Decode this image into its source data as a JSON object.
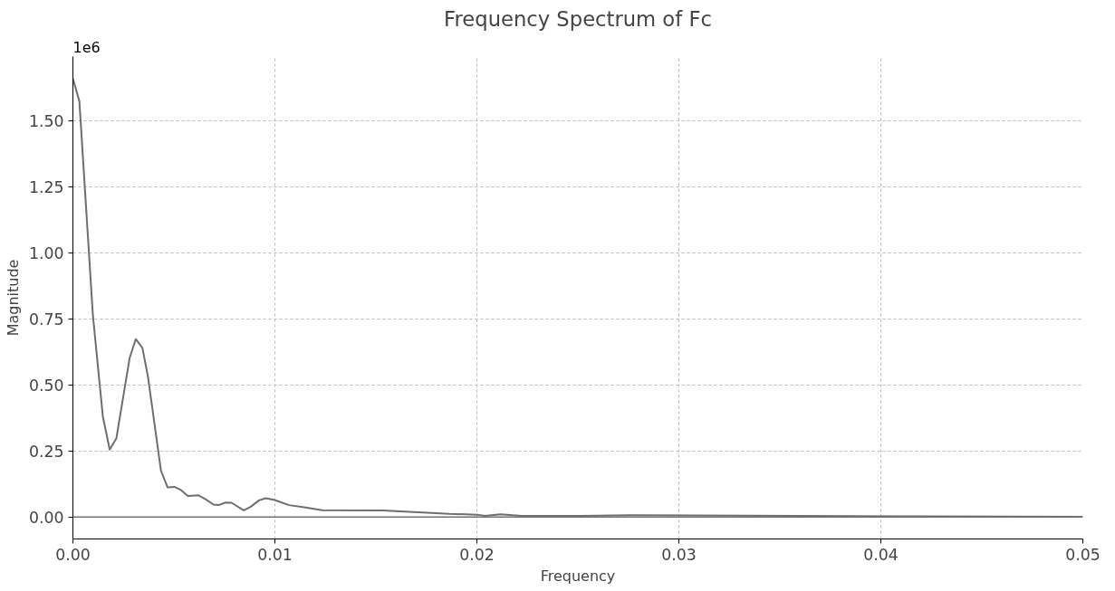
{
  "chart_data": {
    "type": "line",
    "title": "Frequency Spectrum of Fc",
    "xlabel": "Frequency",
    "ylabel": "Magnitude",
    "annotations": [
      "1e6"
    ],
    "xlim": [
      0,
      0.05
    ],
    "xticks": [
      {
        "value": 0,
        "label": "0.00"
      },
      0.01,
      0.02,
      0.03,
      0.04,
      0.05
    ],
    "ylim": [
      -0.083,
      1.742
    ],
    "yticks": [
      {
        "value": 0,
        "label": "0.00"
      },
      0.25,
      {
        "value": 0.5,
        "label": "0.50"
      },
      0.75,
      {
        "value": 1,
        "label": "1.00"
      },
      1.25,
      {
        "value": 1.5,
        "label": "1.50"
      }
    ],
    "grid": true,
    "line_style": "solid",
    "marker": "none",
    "ref_lines": [
      {
        "axis": "y",
        "value": 0,
        "label": null,
        "color": "#707070"
      }
    ],
    "series": [
      {
        "color": "#6e6e6e",
        "x": [
          0,
          0.00032,
          0.00099,
          0.00148,
          0.00182,
          0.00215,
          0.00281,
          0.00311,
          0.00344,
          0.00372,
          0.00436,
          0.00469,
          0.00502,
          0.00535,
          0.00569,
          0.00622,
          0.00655,
          0.00696,
          0.00722,
          0.00755,
          0.00785,
          0.00846,
          0.00879,
          0.00921,
          0.00954,
          0.00996,
          0.0107,
          0.01145,
          0.01235,
          0.01534,
          0.01863,
          0.02,
          0.0204,
          0.02117,
          0.0222,
          0.0252,
          0.0276,
          0.0409,
          0.05
        ],
        "values": [
          1.659,
          1.573,
          0.762,
          0.382,
          0.255,
          0.297,
          0.602,
          0.673,
          0.64,
          0.529,
          0.175,
          0.112,
          0.114,
          0.102,
          0.08,
          0.082,
          0.068,
          0.047,
          0.045,
          0.055,
          0.054,
          0.025,
          0.038,
          0.063,
          0.071,
          0.065,
          0.045,
          0.037,
          0.026,
          0.025,
          0.012,
          0.009,
          0.004,
          0.01,
          0.004,
          0.004,
          0.007,
          0.003,
          0.001
        ]
      }
    ]
  }
}
